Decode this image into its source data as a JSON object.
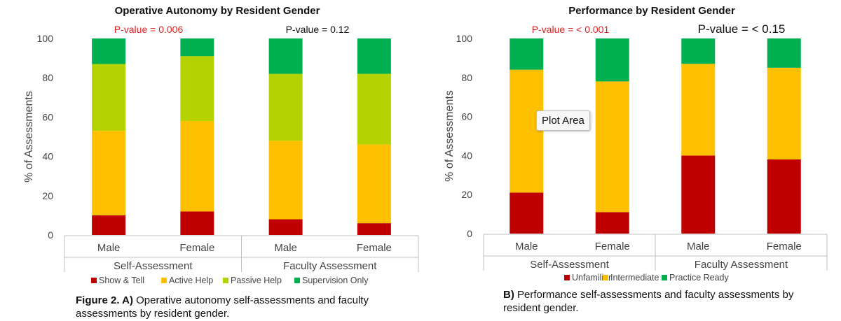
{
  "chart_data": [
    {
      "type": "bar",
      "stacked": true,
      "title": "Operative Autonomy by Resident Gender",
      "ylabel": "% of Assessments",
      "ylim": [
        0,
        100
      ],
      "yticks": [
        0,
        20,
        40,
        60,
        80,
        100
      ],
      "categories": [
        "Male",
        "Female",
        "Male",
        "Female"
      ],
      "groups": [
        "Self-Assessment",
        "Faculty Assessment"
      ],
      "pvalues": [
        {
          "text": "P-value = 0.006",
          "color": "#e02020"
        },
        {
          "text": "P-value = 0.12",
          "color": "#111111"
        }
      ],
      "series": [
        {
          "name": "Show & Tell",
          "color": "#c00000",
          "values": [
            10,
            12,
            8,
            6
          ]
        },
        {
          "name": "Active Help",
          "color": "#ffc000",
          "values": [
            43,
            46,
            40,
            40
          ]
        },
        {
          "name": "Passive Help",
          "color": "#b4d200",
          "values": [
            34,
            33,
            34,
            36
          ]
        },
        {
          "name": "Supervision Only",
          "color": "#00b050",
          "values": [
            13,
            9,
            18,
            18
          ]
        }
      ],
      "caption_label": "Figure 2. A)",
      "caption_text": " Operative autonomy self-assessments and faculty assessments by resident gender."
    },
    {
      "type": "bar",
      "stacked": true,
      "title": "Performance by Resident Gender",
      "ylabel": "% of Assessments",
      "ylim": [
        0,
        100
      ],
      "yticks": [
        0,
        20,
        40,
        60,
        80,
        100
      ],
      "categories": [
        "Male",
        "Female",
        "Male",
        "Female"
      ],
      "groups": [
        "Self-Assessment",
        "Faculty Assessment"
      ],
      "pvalues": [
        {
          "text": "P-value = < 0.001",
          "color": "#e02020"
        },
        {
          "text": "P-value = < 0.15",
          "color": "#111111"
        }
      ],
      "series": [
        {
          "name": "Unfamiliar",
          "color": "#c00000",
          "values": [
            21,
            11,
            40,
            38
          ]
        },
        {
          "name": "Intermediate",
          "color": "#ffc000",
          "values": [
            63,
            67,
            47,
            47
          ]
        },
        {
          "name": "Practice Ready",
          "color": "#00b050",
          "values": [
            16,
            22,
            13,
            15
          ]
        }
      ],
      "caption_label": "B)",
      "caption_text": " Performance self-assessments and faculty assessments by resident gender."
    }
  ],
  "tooltip": "Plot Area"
}
